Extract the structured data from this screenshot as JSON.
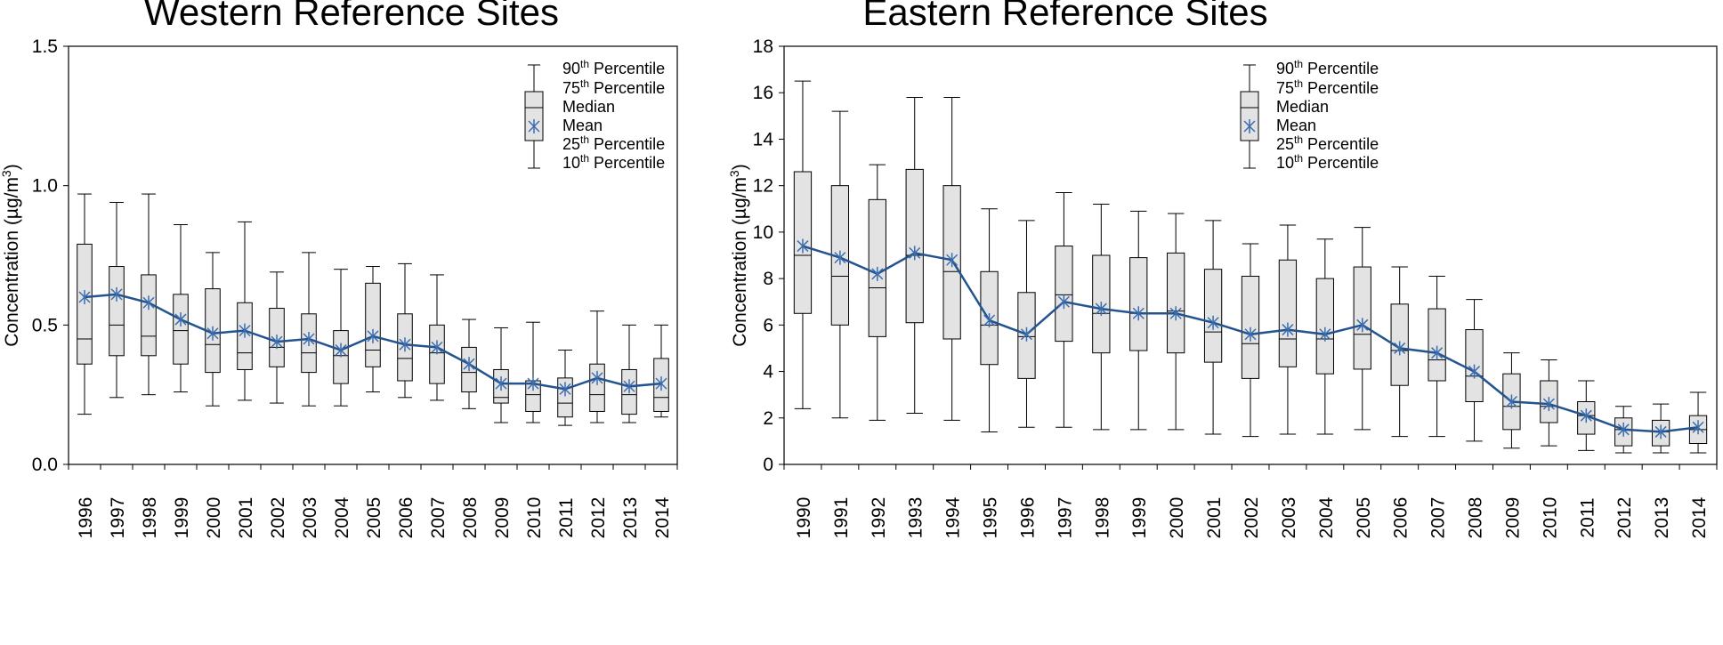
{
  "chart_data": [
    {
      "type": "box",
      "title": "Western Reference Sites",
      "ylabel": "Concentration (µg/m³)",
      "ylabel_parts": {
        "main": "Concentration (µg/m",
        "sup": "3",
        "close": ")"
      },
      "ylim": [
        0,
        1.5
      ],
      "yticks": [
        0,
        0.5,
        1.0,
        1.5
      ],
      "ytick_labels": [
        "0.0",
        "0.5",
        "1.0",
        "1.5"
      ],
      "categories": [
        "1996",
        "1997",
        "1998",
        "1999",
        "2000",
        "2001",
        "2002",
        "2003",
        "2004",
        "2005",
        "2006",
        "2007",
        "2008",
        "2009",
        "2010",
        "2011",
        "2012",
        "2013",
        "2014"
      ],
      "p10": [
        0.18,
        0.24,
        0.25,
        0.26,
        0.21,
        0.23,
        0.22,
        0.21,
        0.21,
        0.26,
        0.24,
        0.23,
        0.2,
        0.15,
        0.15,
        0.14,
        0.15,
        0.15,
        0.17
      ],
      "p25": [
        0.36,
        0.39,
        0.39,
        0.36,
        0.33,
        0.34,
        0.35,
        0.33,
        0.29,
        0.35,
        0.3,
        0.29,
        0.26,
        0.22,
        0.19,
        0.17,
        0.19,
        0.18,
        0.19
      ],
      "median": [
        0.45,
        0.5,
        0.46,
        0.48,
        0.43,
        0.4,
        0.42,
        0.4,
        0.39,
        0.41,
        0.38,
        0.4,
        0.33,
        0.24,
        0.25,
        0.22,
        0.25,
        0.25,
        0.24
      ],
      "p75": [
        0.79,
        0.71,
        0.68,
        0.61,
        0.63,
        0.58,
        0.56,
        0.54,
        0.48,
        0.65,
        0.54,
        0.5,
        0.42,
        0.34,
        0.3,
        0.31,
        0.36,
        0.34,
        0.38
      ],
      "p90": [
        0.97,
        0.94,
        0.97,
        0.86,
        0.76,
        0.87,
        0.69,
        0.76,
        0.7,
        0.71,
        0.72,
        0.68,
        0.52,
        0.49,
        0.51,
        0.41,
        0.55,
        0.5,
        0.5
      ],
      "mean": [
        0.6,
        0.61,
        0.58,
        0.52,
        0.47,
        0.48,
        0.44,
        0.45,
        0.41,
        0.46,
        0.43,
        0.42,
        0.36,
        0.29,
        0.29,
        0.27,
        0.31,
        0.28,
        0.29
      ]
    },
    {
      "type": "box",
      "title": "Eastern Reference Sites",
      "ylabel": "Concentration (µg/m³)",
      "ylabel_parts": {
        "main": "Concentration (µg/m",
        "sup": "3",
        "close": ")"
      },
      "ylim": [
        0,
        18
      ],
      "yticks": [
        0,
        2,
        4,
        6,
        8,
        10,
        12,
        14,
        16,
        18
      ],
      "ytick_labels": [
        "0",
        "2",
        "4",
        "6",
        "8",
        "10",
        "12",
        "14",
        "16",
        "18"
      ],
      "categories": [
        "1990",
        "1991",
        "1992",
        "1993",
        "1994",
        "1995",
        "1996",
        "1997",
        "1998",
        "1999",
        "2000",
        "2001",
        "2002",
        "2003",
        "2004",
        "2005",
        "2006",
        "2007",
        "2008",
        "2009",
        "2010",
        "2011",
        "2012",
        "2013",
        "2014"
      ],
      "p10": [
        2.4,
        2.0,
        1.9,
        2.2,
        1.9,
        1.4,
        1.6,
        1.6,
        1.5,
        1.5,
        1.5,
        1.3,
        1.2,
        1.3,
        1.3,
        1.5,
        1.2,
        1.2,
        1.0,
        0.7,
        0.8,
        0.6,
        0.5,
        0.5,
        0.5
      ],
      "p25": [
        6.5,
        6.0,
        5.5,
        6.1,
        5.4,
        4.3,
        3.7,
        5.3,
        4.8,
        4.9,
        4.8,
        4.4,
        3.7,
        4.2,
        3.9,
        4.1,
        3.4,
        3.6,
        2.7,
        1.5,
        1.8,
        1.3,
        0.8,
        0.8,
        0.9
      ],
      "median": [
        9.0,
        8.1,
        7.6,
        9.0,
        8.3,
        6.0,
        5.5,
        7.3,
        6.5,
        6.5,
        6.6,
        5.7,
        5.2,
        5.4,
        5.4,
        5.6,
        4.9,
        4.5,
        3.8,
        2.5,
        2.5,
        2.1,
        1.5,
        1.4,
        1.5
      ],
      "p75": [
        12.6,
        12.0,
        11.4,
        12.7,
        12.0,
        8.3,
        7.4,
        9.4,
        9.0,
        8.9,
        9.1,
        8.4,
        8.1,
        8.8,
        8.0,
        8.5,
        6.9,
        6.7,
        5.8,
        3.9,
        3.6,
        2.7,
        2.0,
        1.9,
        2.1
      ],
      "p90": [
        16.5,
        15.2,
        12.9,
        15.8,
        15.8,
        11.0,
        10.5,
        11.7,
        11.2,
        10.9,
        10.8,
        10.5,
        9.5,
        10.3,
        9.7,
        10.2,
        8.5,
        8.1,
        7.1,
        4.8,
        4.5,
        3.6,
        2.5,
        2.6,
        3.1
      ],
      "mean": [
        9.4,
        8.9,
        8.2,
        9.1,
        8.8,
        6.2,
        5.6,
        7.0,
        6.7,
        6.5,
        6.5,
        6.1,
        5.6,
        5.8,
        5.6,
        6.0,
        5.0,
        4.8,
        4.0,
        2.7,
        2.6,
        2.1,
        1.5,
        1.4,
        1.6
      ]
    }
  ],
  "legend": {
    "p90": {
      "num": "90",
      "sup": "th",
      "rest": " Percentile"
    },
    "p75": {
      "num": "75",
      "sup": "th",
      "rest": " Percentile"
    },
    "median": "Median",
    "mean": "Mean",
    "p25": {
      "num": "25",
      "sup": "th",
      "rest": " Percentile"
    },
    "p10": {
      "num": "10",
      "sup": "th",
      "rest": " Percentile"
    }
  },
  "colors": {
    "box_fill": "#e3e3e3",
    "mean_line": "#24548f",
    "mean_marker": "#3a6db0"
  }
}
